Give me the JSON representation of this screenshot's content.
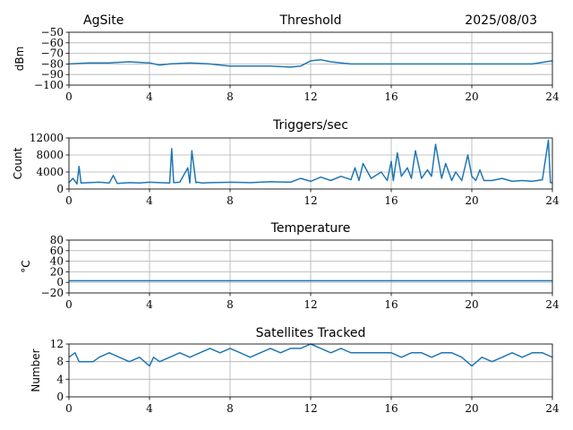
{
  "header": {
    "site": "AgSite",
    "date": "2025/08/03"
  },
  "colors": {
    "series": "#1f77b4"
  },
  "chart_data": [
    {
      "type": "line",
      "title": "Threshold",
      "xlabel": "",
      "ylabel": "dBm",
      "xlim": [
        0,
        24
      ],
      "ylim": [
        -100,
        -50
      ],
      "xticks": [
        0,
        4,
        8,
        12,
        16,
        20,
        24
      ],
      "yticks": [
        -50,
        -60,
        -70,
        -80,
        -90,
        -100
      ],
      "ytick_labels": [
        "−50",
        "−60",
        "−70",
        "−80",
        "−90",
        "−100"
      ],
      "grid": true,
      "series": [
        {
          "x": [
            0,
            1,
            2,
            3,
            4,
            4.5,
            5,
            6,
            7,
            8,
            9,
            10,
            11,
            11.5,
            12,
            12.5,
            13,
            14,
            16,
            18,
            20,
            22,
            23,
            24
          ],
          "y": [
            -80,
            -79,
            -79,
            -78,
            -79,
            -81,
            -80,
            -79,
            -80,
            -82,
            -82,
            -82,
            -83,
            -82,
            -77,
            -76,
            -78,
            -80,
            -80,
            -80,
            -80,
            -80,
            -80,
            -77
          ]
        }
      ]
    },
    {
      "type": "line",
      "title": "Triggers/sec",
      "xlabel": "",
      "ylabel": "Count",
      "xlim": [
        0,
        24
      ],
      "ylim": [
        0,
        12000
      ],
      "xticks": [
        0,
        4,
        8,
        12,
        16,
        20,
        24
      ],
      "yticks": [
        0,
        4000,
        8000,
        12000
      ],
      "ytick_labels": [
        "0",
        "4000",
        "8000",
        "12000"
      ],
      "grid": true,
      "series": [
        {
          "x": [
            0,
            0.2,
            0.4,
            0.5,
            0.6,
            1,
            1.5,
            2,
            2.2,
            2.4,
            3,
            3.5,
            4,
            4.5,
            5,
            5.1,
            5.2,
            5.5,
            5.9,
            6,
            6.1,
            6.3,
            6.4,
            6.6,
            7,
            8,
            9,
            10,
            11,
            11.5,
            12,
            12.5,
            13,
            13.5,
            14,
            14.2,
            14.4,
            14.6,
            15,
            15.5,
            15.8,
            16,
            16.1,
            16.3,
            16.5,
            16.8,
            17,
            17.2,
            17.5,
            17.8,
            18,
            18.2,
            18.5,
            18.7,
            19,
            19.2,
            19.5,
            19.8,
            20,
            20.2,
            20.4,
            20.6,
            21,
            21.5,
            22,
            22.5,
            23,
            23.5,
            23.8,
            23.9,
            24
          ],
          "y": [
            1500,
            2500,
            1200,
            5300,
            1400,
            1500,
            1600,
            1400,
            3200,
            1300,
            1500,
            1400,
            1600,
            1500,
            1400,
            9500,
            1500,
            1600,
            5000,
            1400,
            9000,
            1500,
            1600,
            1400,
            1500,
            1600,
            1500,
            1700,
            1600,
            2500,
            1800,
            2800,
            2000,
            3000,
            2200,
            5000,
            2000,
            6000,
            2500,
            4000,
            2000,
            6500,
            2000,
            8500,
            3000,
            5000,
            2500,
            9000,
            2500,
            4500,
            3000,
            10500,
            2500,
            6000,
            2000,
            4000,
            2000,
            8000,
            3000,
            2000,
            4500,
            2000,
            2000,
            2500,
            1800,
            2000,
            1800,
            2200,
            11500,
            1500,
            1500
          ]
        }
      ]
    },
    {
      "type": "line",
      "title": "Temperature",
      "xlabel": "",
      "ylabel": "°C",
      "xlim": [
        0,
        24
      ],
      "ylim": [
        -20,
        80
      ],
      "xticks": [
        0,
        4,
        8,
        12,
        16,
        20,
        24
      ],
      "yticks": [
        -20,
        0,
        20,
        40,
        60,
        80
      ],
      "ytick_labels": [
        "−20",
        "0",
        "20",
        "40",
        "60",
        "80"
      ],
      "grid": true,
      "series": [
        {
          "x": [
            0,
            24
          ],
          "y": [
            3,
            3
          ]
        }
      ]
    },
    {
      "type": "line",
      "title": "Satellites Tracked",
      "xlabel": "",
      "ylabel": "Number",
      "xlim": [
        0,
        24
      ],
      "ylim": [
        0,
        12
      ],
      "xticks": [
        0,
        4,
        8,
        12,
        16,
        20,
        24
      ],
      "yticks": [
        0,
        4,
        8,
        12
      ],
      "ytick_labels": [
        "0",
        "4",
        "8",
        "12"
      ],
      "grid": true,
      "series": [
        {
          "x": [
            0,
            0.3,
            0.5,
            1,
            1.2,
            1.5,
            2,
            2.5,
            3,
            3.5,
            4,
            4.2,
            4.5,
            5,
            5.5,
            6,
            6.5,
            7,
            7.5,
            8,
            8.5,
            9,
            9.5,
            10,
            10.5,
            11,
            11.5,
            12,
            12.5,
            13,
            13.5,
            14,
            14.5,
            15,
            15.5,
            16,
            16.5,
            17,
            17.5,
            18,
            18.5,
            19,
            19.5,
            20,
            20.5,
            21,
            21.5,
            22,
            22.5,
            23,
            23.5,
            24
          ],
          "y": [
            9,
            10,
            8,
            8,
            8,
            9,
            10,
            9,
            8,
            9,
            7,
            9,
            8,
            9,
            10,
            9,
            10,
            11,
            10,
            11,
            10,
            9,
            10,
            11,
            10,
            11,
            11,
            12,
            11,
            10,
            11,
            10,
            10,
            10,
            10,
            10,
            9,
            10,
            10,
            9,
            10,
            10,
            9,
            7,
            9,
            8,
            9,
            10,
            9,
            10,
            10,
            9
          ]
        }
      ]
    }
  ]
}
